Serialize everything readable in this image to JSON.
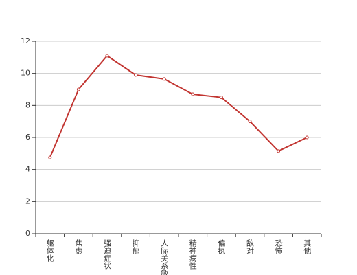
{
  "chart_data": {
    "type": "line",
    "categories": [
      "躯体化",
      "焦虑",
      "强迫症状",
      "抑郁",
      "人际关系敏感",
      "精神病性",
      "偏执",
      "敌对",
      "恐怖",
      "其他"
    ],
    "values": [
      4.75,
      9.0,
      11.1,
      9.9,
      9.65,
      8.7,
      8.5,
      7.0,
      5.15,
      6.0
    ],
    "color": "#c23531",
    "ylim": [
      0,
      12
    ],
    "yticks": [
      0,
      2,
      4,
      6,
      8,
      10,
      12
    ],
    "grid": true
  }
}
